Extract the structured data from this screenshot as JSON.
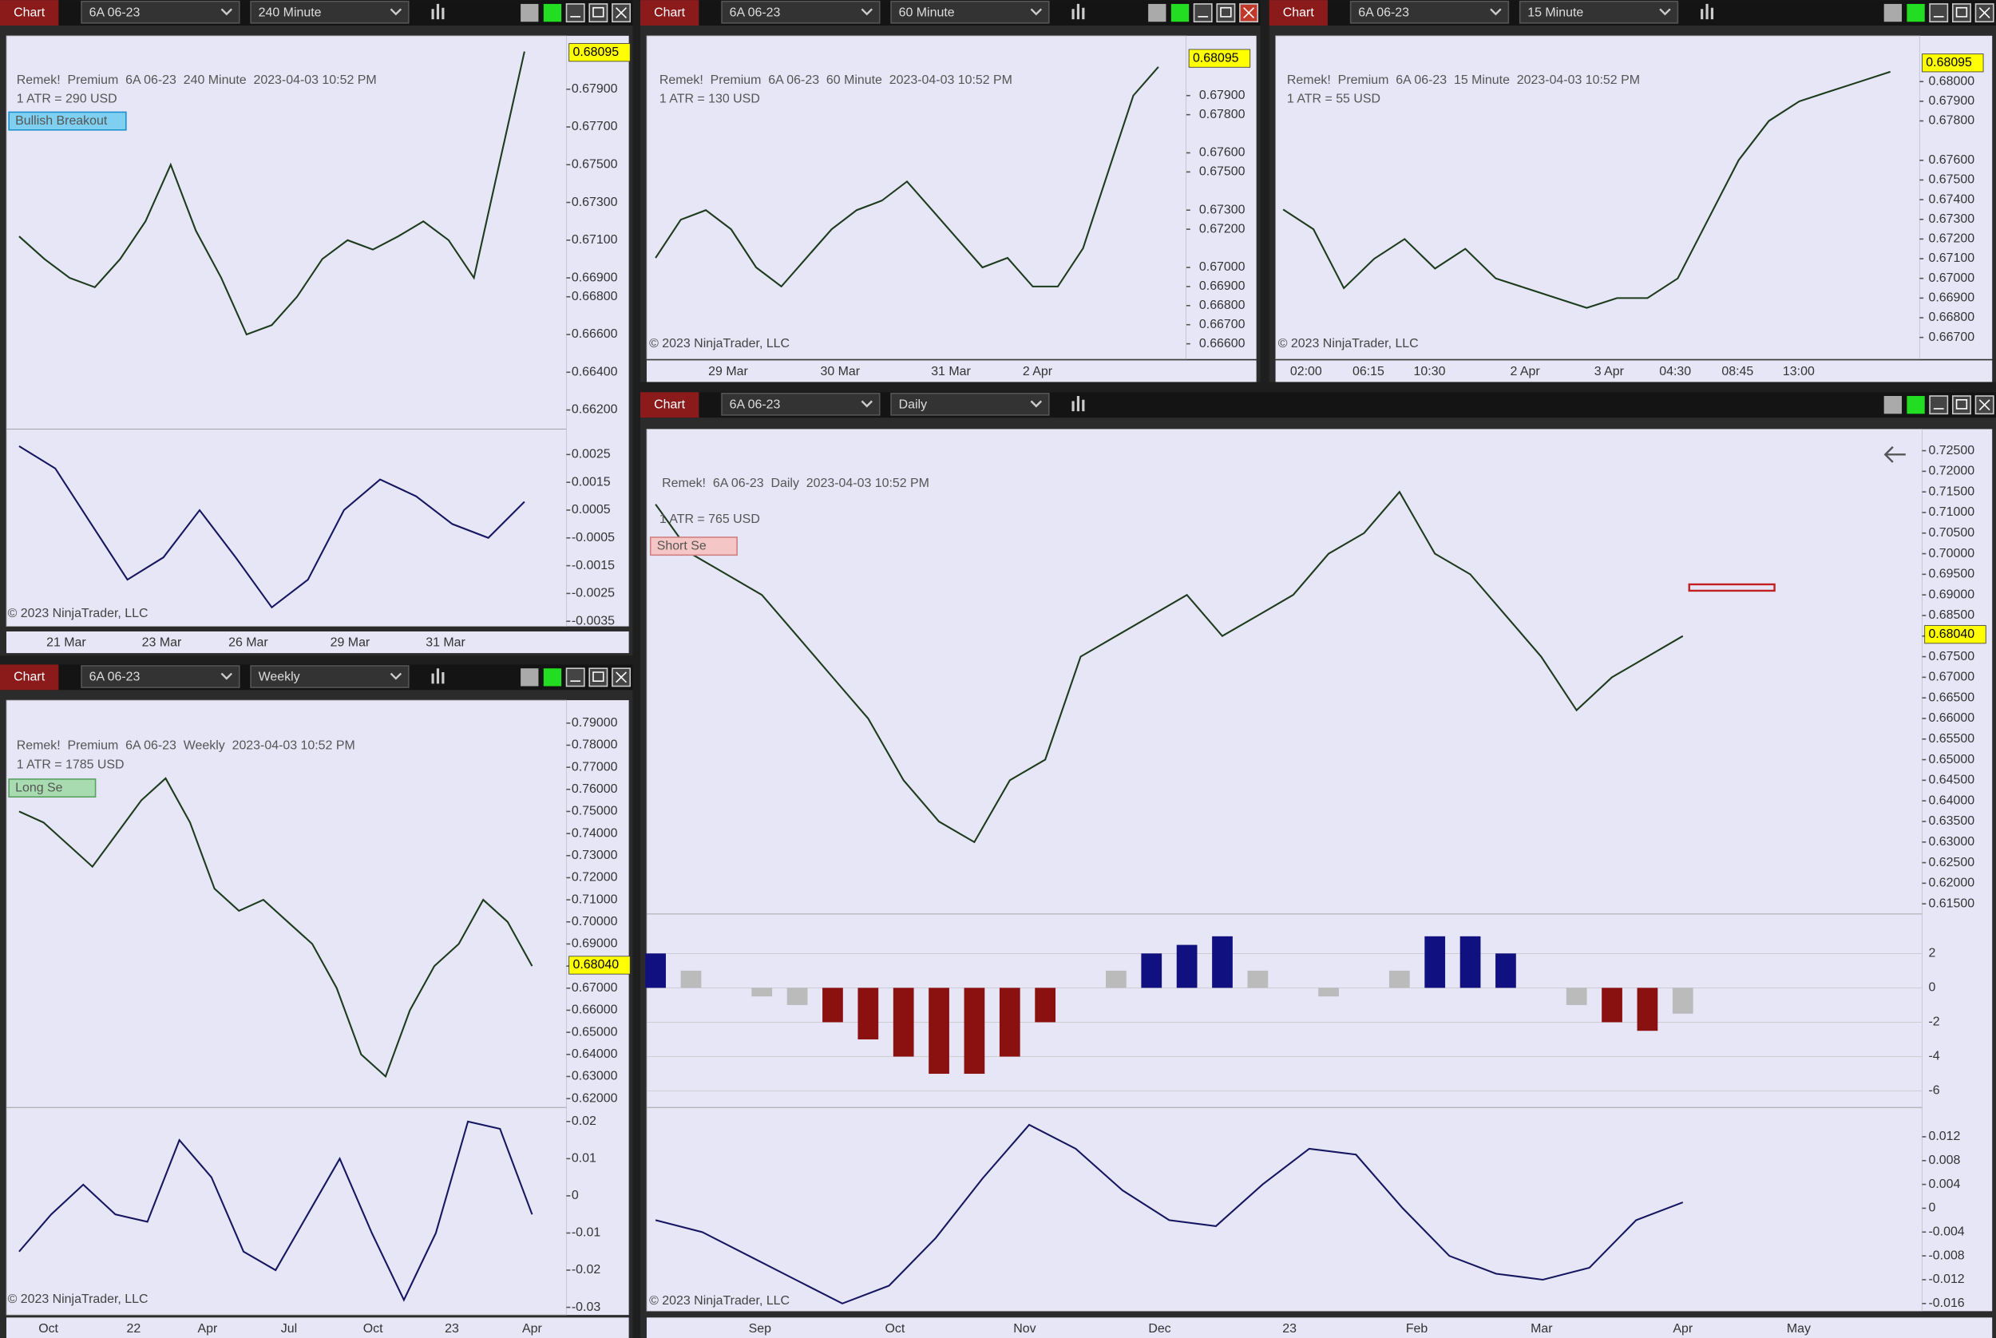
{
  "windows": [
    {
      "toolbar": {
        "tab": "Chart",
        "instrument": "6A 06-23",
        "interval": "240 Minute"
      },
      "header": "Remek!  Premium  6A 06-23  240 Minute  2023-04-03 10:52 PM",
      "atr": "1 ATR = 290 USD",
      "badge": "Bullish Breakout",
      "copyright": "© 2023 NinjaTrader, LLC",
      "price_ticks": [
        "0.67900",
        "0.67700",
        "0.67500",
        "0.67300",
        "0.67100",
        "0.66900",
        "0.66800",
        "0.66600",
        "0.66400",
        "0.66200"
      ],
      "price_marker": "0.68095",
      "price": [
        0.6712,
        0.67,
        0.669,
        0.6685,
        0.67,
        0.672,
        0.675,
        0.6715,
        0.669,
        0.666,
        0.6665,
        0.668,
        0.67,
        0.671,
        0.6705,
        0.6712,
        0.672,
        0.671,
        0.669,
        0.675,
        0.681
      ],
      "osc_ticks": [
        "0.0025",
        "0.0015",
        "0.0005",
        "-0.0005",
        "-0.0015",
        "-0.0025",
        "-0.0035"
      ],
      "osc": [
        0.0028,
        0.002,
        0.0,
        -0.002,
        -0.0012,
        0.0005,
        -0.0012,
        -0.003,
        -0.002,
        0.0005,
        0.0016,
        0.001,
        0.0,
        -0.0005,
        0.0008
      ],
      "time_labels": [
        "21 Mar",
        "23 Mar",
        "26 Mar",
        "29 Mar",
        "31 Mar"
      ]
    },
    {
      "toolbar": {
        "tab": "Chart",
        "instrument": "6A 06-23",
        "interval": "60 Minute"
      },
      "header": "Remek!  Premium  6A 06-23  60 Minute  2023-04-03 10:52 PM",
      "atr": "1 ATR = 130 USD",
      "copyright": "© 2023 NinjaTrader, LLC",
      "price_ticks": [
        "0.67900",
        "0.67800",
        "0.67600",
        "0.67500",
        "0.67300",
        "0.67200",
        "0.67000",
        "0.66900",
        "0.66800",
        "0.66700",
        "0.66600"
      ],
      "price_marker": "0.68095",
      "price": [
        0.6705,
        0.6725,
        0.673,
        0.672,
        0.67,
        0.669,
        0.6705,
        0.672,
        0.673,
        0.6735,
        0.6745,
        0.673,
        0.6715,
        0.67,
        0.6705,
        0.669,
        0.669,
        0.671,
        0.675,
        0.679,
        0.6805
      ],
      "time_labels": [
        "29 Mar",
        "30 Mar",
        "31 Mar",
        "2 Apr"
      ]
    },
    {
      "toolbar": {
        "tab": "Chart",
        "instrument": "6A 06-23",
        "interval": "15 Minute"
      },
      "header": "Remek!  Premium  6A 06-23  15 Minute  2023-04-03 10:52 PM",
      "atr": "1 ATR = 55 USD",
      "copyright": "© 2023 NinjaTrader, LLC",
      "price_ticks": [
        "0.68000",
        "0.67900",
        "0.67800",
        "0.67600",
        "0.67500",
        "0.67400",
        "0.67300",
        "0.67200",
        "0.67100",
        "0.67000",
        "0.66900",
        "0.66800",
        "0.66700"
      ],
      "price_marker": "0.68095",
      "price": [
        0.6735,
        0.6725,
        0.6695,
        0.671,
        0.672,
        0.6705,
        0.6715,
        0.67,
        0.6695,
        0.669,
        0.6685,
        0.669,
        0.669,
        0.67,
        0.673,
        0.676,
        0.678,
        0.679,
        0.6795,
        0.68,
        0.6805
      ],
      "time_labels": [
        "02:00",
        "06:15",
        "10:30",
        "2 Apr",
        "3 Apr",
        "04:30",
        "08:45",
        "13:00"
      ]
    },
    {
      "toolbar": {
        "tab": "Chart",
        "instrument": "6A 06-23",
        "interval": "Weekly"
      },
      "header": "Remek!  Premium  6A 06-23  Weekly  2023-04-03 10:52 PM",
      "atr": "1 ATR = 1785 USD",
      "badge": "Long Se",
      "copyright": "© 2023 NinjaTrader, LLC",
      "price_ticks": [
        "0.79000",
        "0.78000",
        "0.77000",
        "0.76000",
        "0.75000",
        "0.74000",
        "0.73000",
        "0.72000",
        "0.71000",
        "0.70000",
        "0.69000",
        "0.68000",
        "0.67000",
        "0.66000",
        "0.65000",
        "0.64000",
        "0.63000",
        "0.62000"
      ],
      "price_marker": "0.68040",
      "price": [
        0.75,
        0.745,
        0.735,
        0.725,
        0.74,
        0.755,
        0.765,
        0.745,
        0.715,
        0.705,
        0.71,
        0.7,
        0.69,
        0.67,
        0.64,
        0.63,
        0.66,
        0.68,
        0.69,
        0.71,
        0.7,
        0.68
      ],
      "osc_ticks": [
        "0.02",
        "0.01",
        "0",
        "-0.01",
        "-0.02",
        "-0.03"
      ],
      "osc": [
        -0.015,
        -0.005,
        0.003,
        -0.005,
        -0.007,
        0.015,
        0.005,
        -0.015,
        -0.02,
        -0.005,
        0.01,
        -0.01,
        -0.028,
        -0.01,
        0.02,
        0.018,
        -0.005
      ],
      "time_labels": [
        "Oct",
        "22",
        "Apr",
        "Jul",
        "Oct",
        "23",
        "Apr"
      ]
    },
    {
      "toolbar": {
        "tab": "Chart",
        "instrument": "6A 06-23",
        "interval": "Daily"
      },
      "header": "Remek!  6A 06-23  Daily  2023-04-03 10:52 PM",
      "atr": "1 ATR = 765 USD",
      "badge": "Short Se",
      "copyright": "© 2023 NinjaTrader, LLC",
      "price_ticks": [
        "0.72500",
        "0.72000",
        "0.71500",
        "0.71000",
        "0.70500",
        "0.70000",
        "0.69500",
        "0.69000",
        "0.68500",
        "0.68000",
        "0.67500",
        "0.67000",
        "0.66500",
        "0.66000",
        "0.65500",
        "0.65000",
        "0.64500",
        "0.64000",
        "0.63500",
        "0.63000",
        "0.62500",
        "0.62000",
        "0.61500"
      ],
      "price_marker": "0.68040",
      "price": [
        0.712,
        0.7,
        0.695,
        0.69,
        0.68,
        0.67,
        0.66,
        0.645,
        0.635,
        0.63,
        0.645,
        0.65,
        0.675,
        0.68,
        0.685,
        0.69,
        0.68,
        0.685,
        0.69,
        0.7,
        0.705,
        0.715,
        0.7,
        0.695,
        0.685,
        0.675,
        0.662,
        0.67,
        0.675,
        0.68
      ],
      "macd_ticks": [
        "2",
        "0",
        "-2",
        "-4",
        "-6"
      ],
      "macd": [
        2,
        1,
        0,
        -0.5,
        -1,
        -2,
        -3,
        -4,
        -5,
        -5,
        -4,
        -2,
        0,
        1,
        2,
        2.5,
        3,
        1,
        0,
        -0.5,
        0,
        1,
        3,
        3,
        2,
        0,
        -1,
        -2,
        -2.5,
        -1.5
      ],
      "osc_ticks": [
        "0.012",
        "0.008",
        "0.004",
        "0",
        "-0.004",
        "-0.008",
        "-0.012",
        "-0.016"
      ],
      "osc": [
        -0.002,
        -0.004,
        -0.008,
        -0.012,
        -0.016,
        -0.013,
        -0.005,
        0.005,
        0.014,
        0.01,
        0.003,
        -0.002,
        -0.003,
        0.004,
        0.01,
        0.009,
        0.0,
        -0.008,
        -0.011,
        -0.012,
        -0.01,
        -0.002,
        0.001
      ],
      "time_labels": [
        "Sep",
        "Oct",
        "Nov",
        "Dec",
        "23",
        "Feb",
        "Mar",
        "Apr",
        "May"
      ]
    }
  ]
}
